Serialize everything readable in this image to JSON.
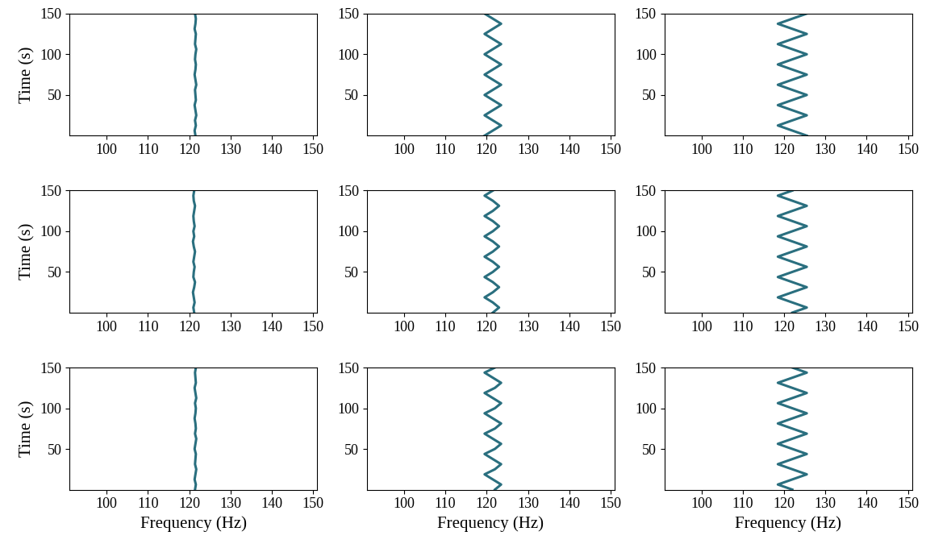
{
  "chart_data": [
    {
      "type": "line",
      "xlabel": null,
      "ylabel": "Time (s)",
      "color": "#2a6f7f",
      "x": [
        121.5,
        121.3,
        121.6,
        121.4,
        121.7,
        121.5,
        121.3,
        121.6,
        121.5,
        121.4,
        121.7,
        121.5,
        121.3,
        121.5,
        121.6,
        121.4,
        121.5,
        121.7,
        121.4,
        121.5,
        121.6,
        121.3,
        121.5,
        121.6,
        121.4
      ],
      "values": [
        0,
        6.25,
        12.5,
        18.75,
        25,
        31.25,
        37.5,
        43.75,
        50,
        56.25,
        62.5,
        68.75,
        75,
        81.25,
        87.5,
        93.75,
        100,
        106.25,
        112.5,
        118.75,
        125,
        131.25,
        137.5,
        143.75,
        150
      ],
      "xlim": [
        91,
        151
      ],
      "ylim": [
        0,
        150
      ],
      "xticks": [
        100,
        110,
        120,
        130,
        140,
        150
      ],
      "yticks": [
        50,
        100,
        150
      ]
    },
    {
      "type": "line",
      "xlabel": null,
      "ylabel": null,
      "color": "#2a6f7f",
      "x": [
        119.5,
        121.5,
        123.5,
        121.5,
        119.5,
        121.5,
        123.5,
        121.5,
        119.5,
        121.5,
        123.5,
        121.5,
        119.5,
        121.5,
        123.5,
        121.5,
        119.5,
        121.5,
        123.5,
        121.5,
        119.5,
        121.5,
        123.5,
        121.5,
        119.5
      ],
      "values": [
        0,
        6.25,
        12.5,
        18.75,
        25,
        31.25,
        37.5,
        43.75,
        50,
        56.25,
        62.5,
        68.75,
        75,
        81.25,
        87.5,
        93.75,
        100,
        106.25,
        112.5,
        118.75,
        125,
        131.25,
        137.5,
        143.75,
        150
      ],
      "xlim": [
        91,
        151
      ],
      "ylim": [
        0,
        150
      ],
      "xticks": [
        100,
        110,
        120,
        130,
        140,
        150
      ],
      "yticks": [
        50,
        100,
        150
      ]
    },
    {
      "type": "line",
      "xlabel": null,
      "ylabel": null,
      "color": "#2a6f7f",
      "x": [
        125.5,
        122,
        118.5,
        122,
        125.5,
        122,
        118.5,
        122,
        125.5,
        122,
        118.5,
        122,
        125.5,
        122,
        118.5,
        122,
        125.5,
        122,
        118.5,
        122,
        125.5,
        122,
        118.5,
        122,
        125.5
      ],
      "values": [
        0,
        6.25,
        12.5,
        18.75,
        25,
        31.25,
        37.5,
        43.75,
        50,
        56.25,
        62.5,
        68.75,
        75,
        81.25,
        87.5,
        93.75,
        100,
        106.25,
        112.5,
        118.75,
        125,
        131.25,
        137.5,
        143.75,
        150
      ],
      "xlim": [
        91,
        151
      ],
      "ylim": [
        0,
        150
      ],
      "xticks": [
        100,
        110,
        120,
        130,
        140,
        150
      ],
      "yticks": [
        50,
        100,
        150
      ]
    },
    {
      "type": "line",
      "xlabel": null,
      "ylabel": "Time (s)",
      "color": "#2a6f7f",
      "x": [
        121.2,
        121.0,
        121.3,
        121.1,
        120.9,
        121.2,
        121.4,
        121.0,
        121.1,
        121.3,
        121.0,
        121.2,
        121.4,
        121.1,
        120.9,
        121.2,
        121.0,
        121.3,
        121.1,
        121.0,
        121.2,
        121.4,
        121.1,
        121.0,
        121.2
      ],
      "values": [
        0,
        6.25,
        12.5,
        18.75,
        25,
        31.25,
        37.5,
        43.75,
        50,
        56.25,
        62.5,
        68.75,
        75,
        81.25,
        87.5,
        93.75,
        100,
        106.25,
        112.5,
        118.75,
        125,
        131.25,
        137.5,
        143.75,
        150
      ],
      "xlim": [
        91,
        151
      ],
      "ylim": [
        0,
        150
      ],
      "xticks": [
        100,
        110,
        120,
        130,
        140,
        150
      ],
      "yticks": [
        50,
        100,
        150
      ]
    },
    {
      "type": "line",
      "xlabel": null,
      "ylabel": null,
      "color": "#2a6f7f",
      "x": [
        121.5,
        123,
        121.5,
        119.5,
        121.5,
        123,
        121.5,
        119.5,
        121.5,
        123,
        121.5,
        119.5,
        121.5,
        123,
        121.5,
        119.5,
        121.5,
        123,
        121.5,
        119.5,
        121.5,
        123,
        121.5,
        119.5,
        121.5
      ],
      "values": [
        0,
        6.25,
        12.5,
        18.75,
        25,
        31.25,
        37.5,
        43.75,
        50,
        56.25,
        62.5,
        68.75,
        75,
        81.25,
        87.5,
        93.75,
        100,
        106.25,
        112.5,
        118.75,
        125,
        131.25,
        137.5,
        143.75,
        150
      ],
      "xlim": [
        91,
        151
      ],
      "ylim": [
        0,
        150
      ],
      "xticks": [
        100,
        110,
        120,
        130,
        140,
        150
      ],
      "yticks": [
        50,
        100,
        150
      ]
    },
    {
      "type": "line",
      "xlabel": null,
      "ylabel": null,
      "color": "#2a6f7f",
      "x": [
        122,
        125.5,
        122,
        118.5,
        122,
        125.5,
        122,
        118.5,
        122,
        125.5,
        122,
        118.5,
        122,
        125.5,
        122,
        118.5,
        122,
        125.5,
        122,
        118.5,
        122,
        125.5,
        122,
        118.5,
        122
      ],
      "values": [
        0,
        6.25,
        12.5,
        18.75,
        25,
        31.25,
        37.5,
        43.75,
        50,
        56.25,
        62.5,
        68.75,
        75,
        81.25,
        87.5,
        93.75,
        100,
        106.25,
        112.5,
        118.75,
        125,
        131.25,
        137.5,
        143.75,
        150
      ],
      "xlim": [
        91,
        151
      ],
      "ylim": [
        0,
        150
      ],
      "xticks": [
        100,
        110,
        120,
        130,
        140,
        150
      ],
      "yticks": [
        50,
        100,
        150
      ]
    },
    {
      "type": "line",
      "xlabel": "Frequency (Hz)",
      "ylabel": "Time (s)",
      "color": "#2a6f7f",
      "x": [
        121.4,
        121.6,
        121.3,
        121.5,
        121.7,
        121.4,
        121.5,
        121.6,
        121.3,
        121.5,
        121.7,
        121.4,
        121.6,
        121.5,
        121.3,
        121.5,
        121.6,
        121.4,
        121.7,
        121.5,
        121.3,
        121.6,
        121.5,
        121.4,
        121.6
      ],
      "values": [
        0,
        6.25,
        12.5,
        18.75,
        25,
        31.25,
        37.5,
        43.75,
        50,
        56.25,
        62.5,
        68.75,
        75,
        81.25,
        87.5,
        93.75,
        100,
        106.25,
        112.5,
        118.75,
        125,
        131.25,
        137.5,
        143.75,
        150
      ],
      "xlim": [
        91,
        151
      ],
      "ylim": [
        0,
        150
      ],
      "xticks": [
        100,
        110,
        120,
        130,
        140,
        150
      ],
      "yticks": [
        50,
        100,
        150
      ]
    },
    {
      "type": "line",
      "xlabel": "Frequency (Hz)",
      "ylabel": null,
      "color": "#2a6f7f",
      "x": [
        122,
        123.5,
        121.5,
        119.5,
        122,
        123.5,
        121.5,
        119.5,
        122,
        123.5,
        121.5,
        119.5,
        122,
        123.5,
        121.5,
        119.5,
        122,
        123.5,
        121.5,
        119.5,
        122,
        123.5,
        121.5,
        119.5,
        122
      ],
      "values": [
        0,
        6.25,
        12.5,
        18.75,
        25,
        31.25,
        37.5,
        43.75,
        50,
        56.25,
        62.5,
        68.75,
        75,
        81.25,
        87.5,
        93.75,
        100,
        106.25,
        112.5,
        118.75,
        125,
        131.25,
        137.5,
        143.75,
        150
      ],
      "xlim": [
        91,
        151
      ],
      "ylim": [
        0,
        150
      ],
      "xticks": [
        100,
        110,
        120,
        130,
        140,
        150
      ],
      "yticks": [
        50,
        100,
        150
      ]
    },
    {
      "type": "line",
      "xlabel": "Frequency (Hz)",
      "ylabel": null,
      "color": "#2a6f7f",
      "x": [
        122,
        118.5,
        122,
        125.5,
        122,
        118.5,
        122,
        125.5,
        122,
        118.5,
        122,
        125.5,
        122,
        118.5,
        122,
        125.5,
        122,
        118.5,
        122,
        125.5,
        122,
        118.5,
        122,
        125.5,
        122
      ],
      "values": [
        0,
        6.25,
        12.5,
        18.75,
        25,
        31.25,
        37.5,
        43.75,
        50,
        56.25,
        62.5,
        68.75,
        75,
        81.25,
        87.5,
        93.75,
        100,
        106.25,
        112.5,
        118.75,
        125,
        131.25,
        137.5,
        143.75,
        150
      ],
      "xlim": [
        91,
        151
      ],
      "ylim": [
        0,
        150
      ],
      "xticks": [
        100,
        110,
        120,
        130,
        140,
        150
      ],
      "yticks": [
        50,
        100,
        150
      ]
    }
  ]
}
